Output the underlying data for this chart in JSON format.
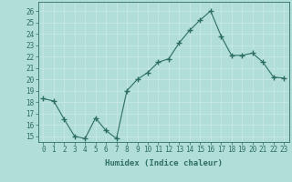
{
  "x": [
    0,
    1,
    2,
    3,
    4,
    5,
    6,
    7,
    8,
    9,
    10,
    11,
    12,
    13,
    14,
    15,
    16,
    17,
    18,
    19,
    20,
    21,
    22,
    23
  ],
  "y": [
    18.3,
    18.1,
    16.5,
    15.0,
    14.8,
    16.6,
    15.5,
    14.8,
    19.0,
    20.0,
    20.6,
    21.5,
    21.8,
    23.2,
    24.3,
    25.2,
    26.0,
    23.8,
    22.1,
    22.1,
    22.3,
    21.5,
    20.2,
    20.1
  ],
  "line_color": "#2d6e63",
  "marker": "+",
  "marker_size": 4,
  "marker_linewidth": 1.0,
  "xlabel": "Humidex (Indice chaleur)",
  "ylim": [
    14.5,
    26.8
  ],
  "yticks": [
    15,
    16,
    17,
    18,
    19,
    20,
    21,
    22,
    23,
    24,
    25,
    26
  ],
  "xticks": [
    0,
    1,
    2,
    3,
    4,
    5,
    6,
    7,
    8,
    9,
    10,
    11,
    12,
    13,
    14,
    15,
    16,
    17,
    18,
    19,
    20,
    21,
    22,
    23
  ],
  "bg_color": "#b2ded8",
  "grid_color": "#c8e8e4",
  "tick_color": "#2d6e63",
  "label_color": "#2d6e63",
  "font_family": "monospace",
  "font_size": 5.5,
  "xlabel_fontsize": 6.5
}
